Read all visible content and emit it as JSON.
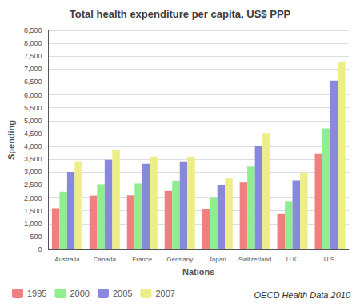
{
  "chart_data": {
    "type": "bar",
    "title": "Total health expenditure per capita, US$ PPP",
    "xlabel": "Nations",
    "ylabel": "Spending",
    "categories": [
      "Australia",
      "Canada",
      "France",
      "Germany",
      "Japan",
      "Switzerland",
      "U.K.",
      "U.S."
    ],
    "series": [
      {
        "name": "1995",
        "color": "#F08080",
        "values": [
          1600,
          2090,
          2100,
          2270,
          1560,
          2600,
          1370,
          3700
        ]
      },
      {
        "name": "2000",
        "color": "#90EE90",
        "values": [
          2240,
          2530,
          2560,
          2670,
          2000,
          3220,
          1850,
          4700
        ]
      },
      {
        "name": "2005",
        "color": "#8888DD",
        "values": [
          3010,
          3480,
          3330,
          3390,
          2510,
          4010,
          2680,
          6550
        ]
      },
      {
        "name": "2007",
        "color": "#EEEE88",
        "values": [
          3400,
          3850,
          3610,
          3610,
          2750,
          4520,
          2990,
          7300
        ]
      }
    ],
    "ylim": [
      0,
      8500
    ],
    "yticks": [
      0,
      500,
      1000,
      1500,
      2000,
      2500,
      3000,
      3500,
      4000,
      4500,
      5000,
      5500,
      6000,
      6500,
      7000,
      7500,
      8000,
      8500
    ],
    "grid": true,
    "legend": "lower left",
    "annotation": "OECD Health Data 2010"
  }
}
